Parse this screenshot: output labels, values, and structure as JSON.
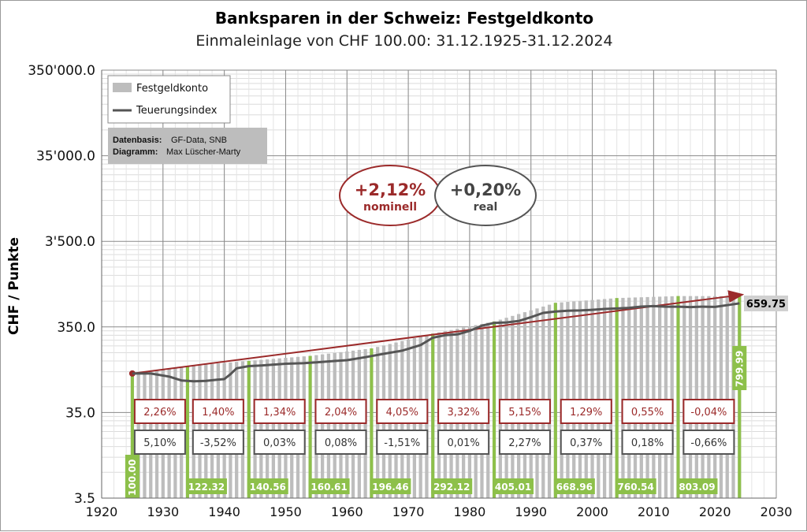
{
  "title": "Banksparen  in der Schweiz: Festgeldkonto",
  "subtitle": "Einmaleinlage von CHF 100.00: 31.12.1925-31.12.2024",
  "colors": {
    "bars": "#bdbdbd",
    "green": "#8dc04a",
    "index_line": "#555555",
    "trend": "#9b2a2a"
  },
  "legend": {
    "bars_label": "Festgeldkonto",
    "line_label": "Teuerungsindex"
  },
  "source": {
    "data_key": "Datenbasis:",
    "data_val": "GF-Data, SNB",
    "diagram_key": "Diagramm:",
    "diagram_val": "Max Lüscher-Marty"
  },
  "annotations": {
    "nominal_rate": "+2,12%",
    "nominal_label": "nominell",
    "real_rate": "+0,20%",
    "real_label": "real",
    "end_value": "659.75"
  },
  "chart_data": {
    "type": "bar",
    "title": "Banksparen  in der Schweiz: Festgeldkonto",
    "subtitle": "Einmaleinlage von CHF 100.00: 31.12.1925-31.12.2024",
    "ylabel": "CHF / Punkte",
    "y_scale": "log",
    "ylim": [
      3.5,
      350000
    ],
    "xlim": [
      1920,
      2030
    ],
    "y_ticks": [
      "3.5",
      "35.0",
      "350.0",
      "3'500.0",
      "35'000.0",
      "350'000.0"
    ],
    "y_tick_values": [
      3.5,
      35,
      350,
      3500,
      35000,
      350000
    ],
    "x_ticks": [
      "1920",
      "1930",
      "1940",
      "1950",
      "1960",
      "1970",
      "1980",
      "1990",
      "2000",
      "2010",
      "2020",
      "2030"
    ],
    "x_tick_values": [
      1920,
      1930,
      1940,
      1950,
      1960,
      1970,
      1980,
      1990,
      2000,
      2010,
      2020,
      2030
    ],
    "grid": true,
    "legend_position": "top-left",
    "bar_series": {
      "name": "Festgeldkonto",
      "anchors": [
        {
          "year": 1925,
          "value": 100.0
        },
        {
          "year": 1934,
          "value": 122.32
        },
        {
          "year": 1944,
          "value": 140.56
        },
        {
          "year": 1954,
          "value": 160.61
        },
        {
          "year": 1964,
          "value": 196.46
        },
        {
          "year": 1974,
          "value": 292.12
        },
        {
          "year": 1984,
          "value": 405.01
        },
        {
          "year": 1994,
          "value": 668.96
        },
        {
          "year": 2004,
          "value": 760.54
        },
        {
          "year": 2014,
          "value": 803.09
        },
        {
          "year": 2024,
          "value": 799.99
        }
      ]
    },
    "decade_labels": [
      "100.00",
      "122.32",
      "140.56",
      "160.61",
      "196.46",
      "292.12",
      "405.01",
      "668.96",
      "760.54",
      "803.09",
      "799.99"
    ],
    "line_series": {
      "name": "Teuerungsindex",
      "points": [
        [
          1925,
          100
        ],
        [
          1928,
          100
        ],
        [
          1931,
          92
        ],
        [
          1933,
          83
        ],
        [
          1935,
          81
        ],
        [
          1937,
          82
        ],
        [
          1939,
          85
        ],
        [
          1940,
          86
        ],
        [
          1941,
          98
        ],
        [
          1942,
          115
        ],
        [
          1944,
          122
        ],
        [
          1946,
          124
        ],
        [
          1948,
          127
        ],
        [
          1950,
          130
        ],
        [
          1953,
          132
        ],
        [
          1955,
          135
        ],
        [
          1958,
          140
        ],
        [
          1960,
          143
        ],
        [
          1963,
          155
        ],
        [
          1966,
          170
        ],
        [
          1969,
          185
        ],
        [
          1972,
          215
        ],
        [
          1974,
          262
        ],
        [
          1976,
          280
        ],
        [
          1978,
          286
        ],
        [
          1980,
          315
        ],
        [
          1982,
          362
        ],
        [
          1984,
          390
        ],
        [
          1986,
          395
        ],
        [
          1988,
          410
        ],
        [
          1990,
          455
        ],
        [
          1992,
          510
        ],
        [
          1994,
          530
        ],
        [
          1996,
          540
        ],
        [
          1998,
          545
        ],
        [
          2000,
          555
        ],
        [
          2002,
          567
        ],
        [
          2004,
          575
        ],
        [
          2006,
          585
        ],
        [
          2008,
          605
        ],
        [
          2010,
          612
        ],
        [
          2012,
          604
        ],
        [
          2014,
          603
        ],
        [
          2016,
          597
        ],
        [
          2018,
          604
        ],
        [
          2020,
          600
        ],
        [
          2022,
          628
        ],
        [
          2024,
          659.75
        ]
      ]
    },
    "trend_line": {
      "name": "nominell trend",
      "from": [
        1925,
        100
      ],
      "to": [
        2024,
        799.99
      ]
    },
    "decade_returns": {
      "nominal": [
        "2,26%",
        "1,40%",
        "1,34%",
        "2,04%",
        "4,05%",
        "3,32%",
        "5,15%",
        "1,29%",
        "0,55%",
        "-0,04%"
      ],
      "real": [
        "5,10%",
        "-3,52%",
        "0,03%",
        "0,08%",
        "-1,51%",
        "0,01%",
        "2,27%",
        "0,37%",
        "0,18%",
        "-0,66%"
      ]
    }
  }
}
